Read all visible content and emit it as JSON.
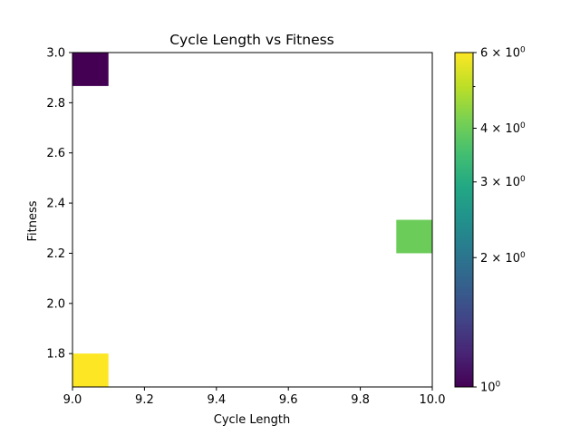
{
  "chart_data": {
    "type": "heatmap",
    "title": "Cycle Length vs Fitness",
    "xlabel": "Cycle Length",
    "ylabel": "Fitness",
    "xlim": [
      9.0,
      10.0
    ],
    "ylim": [
      1.667,
      3.0
    ],
    "x_ticks": [
      "9.0",
      "9.2",
      "9.4",
      "9.6",
      "9.8",
      "10.0"
    ],
    "y_ticks": [
      "1.8",
      "2.0",
      "2.2",
      "2.4",
      "2.6",
      "2.8",
      "3.0"
    ],
    "bin_width_x": 0.1,
    "bin_height_y": 0.1333,
    "cells": [
      {
        "x0": 9.0,
        "y0": 2.8667,
        "count": 1
      },
      {
        "x0": 9.9,
        "y0": 2.2,
        "count": 4
      },
      {
        "x0": 9.0,
        "y0": 1.667,
        "count": 6
      }
    ],
    "colorbar": {
      "scale": "log",
      "colormap": "viridis",
      "min": 1,
      "max": 6,
      "ticks": [
        {
          "value": 1,
          "base": "10",
          "exp": "0"
        },
        {
          "value": 2,
          "base": "2 × 10",
          "exp": "0"
        },
        {
          "value": 3,
          "base": "3 × 10",
          "exp": "0"
        },
        {
          "value": 4,
          "base": "4 × 10",
          "exp": "0"
        },
        {
          "value": 6,
          "base": "6 × 10",
          "exp": "0"
        }
      ]
    },
    "grid": false
  }
}
